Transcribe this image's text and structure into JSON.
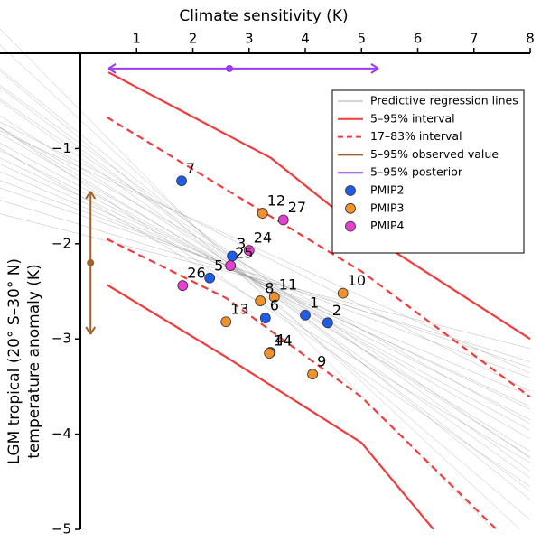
{
  "chart_data": {
    "type": "scatter",
    "xlabel": "Climate sensitivity (K)",
    "ylabel": [
      "LGM tropical (20° S–30° N)",
      "temperature anomaly (K)"
    ],
    "xlim": [
      -1.43,
      8
    ],
    "ylim": [
      -5,
      0.56
    ],
    "xticks": [
      1,
      2,
      3,
      4,
      5,
      6,
      7,
      8
    ],
    "yticks": [
      {
        "value": -1,
        "label": "−1"
      },
      {
        "value": -2,
        "label": "−2"
      },
      {
        "value": -3,
        "label": "−3"
      },
      {
        "value": -4,
        "label": "−4"
      },
      {
        "value": -5,
        "label": "−5"
      }
    ],
    "legend": "upper right",
    "regression": {
      "name": "Predictive regression lines",
      "color": "#8a8a8a",
      "lines": [
        {
          "intercept": -1.33,
          "slope": -0.34
        },
        {
          "intercept": -1.1,
          "slope": -0.42
        },
        {
          "intercept": -1.5,
          "slope": -0.28
        },
        {
          "intercept": -0.9,
          "slope": -0.5
        },
        {
          "intercept": -1.7,
          "slope": -0.2
        },
        {
          "intercept": -1.2,
          "slope": -0.38
        },
        {
          "intercept": -1.45,
          "slope": -0.3
        },
        {
          "intercept": -0.7,
          "slope": -0.55
        },
        {
          "intercept": -1.9,
          "slope": -0.15
        },
        {
          "intercept": -1.3,
          "slope": -0.36
        },
        {
          "intercept": -1.0,
          "slope": -0.45
        },
        {
          "intercept": -1.6,
          "slope": -0.25
        },
        {
          "intercept": -1.25,
          "slope": -0.33
        },
        {
          "intercept": -0.85,
          "slope": -0.48
        },
        {
          "intercept": -1.55,
          "slope": -0.27
        },
        {
          "intercept": -1.35,
          "slope": -0.4
        },
        {
          "intercept": -1.15,
          "slope": -0.3
        },
        {
          "intercept": -0.6,
          "slope": -0.6
        },
        {
          "intercept": -1.8,
          "slope": -0.18
        },
        {
          "intercept": -1.4,
          "slope": -0.32
        },
        {
          "intercept": -0.95,
          "slope": -0.43
        },
        {
          "intercept": -1.65,
          "slope": -0.22
        },
        {
          "intercept": -1.05,
          "slope": -0.4
        },
        {
          "intercept": -1.5,
          "slope": -0.35
        },
        {
          "intercept": -1.2,
          "slope": -0.27
        }
      ]
    },
    "intervals": [
      {
        "name": "5–95% interval",
        "color": "#f03c3c",
        "dashed": false,
        "curves": [
          {
            "x": [
              0.5,
              3.39,
              5,
              8
            ],
            "values": [
              -0.2,
              -1.1,
              -1.86,
              -3.0
            ]
          },
          {
            "x": [
              0.47,
              2.59,
              5,
              6.28
            ],
            "values": [
              -2.43,
              -3.19,
              -4.09,
              -5.0
            ]
          }
        ]
      },
      {
        "name": "17–83% interval",
        "color": "#f03c3c",
        "dashed": true,
        "curves": [
          {
            "x": [
              0.47,
              2.59,
              5,
              8
            ],
            "values": [
              -0.67,
              -1.43,
              -2.29,
              -3.61
            ]
          },
          {
            "x": [
              0.47,
              2.59,
              5,
              7.4
            ],
            "values": [
              -1.95,
              -2.57,
              -3.61,
              -5.0
            ]
          }
        ]
      }
    ],
    "observed": {
      "name": "5–95% observed value",
      "color": "#a0622d",
      "x": 0.18,
      "low": -2.95,
      "mid": -2.2,
      "high": -1.45
    },
    "posterior": {
      "name": "5–95% posterior",
      "color": "#9b3cf0",
      "y": -0.16,
      "low": 0.5,
      "mid": 2.65,
      "high": 5.3
    },
    "series": [
      {
        "name": "PMIP2",
        "color": "#1f5ce8",
        "labels": [
          "7",
          "3",
          "5",
          "1",
          "2",
          "6",
          "4"
        ],
        "x": [
          1.8,
          2.7,
          2.3,
          4.0,
          4.4,
          3.29,
          3.38
        ],
        "values": [
          -1.34,
          -2.13,
          -2.36,
          -2.75,
          -2.83,
          -2.78,
          -3.14
        ]
      },
      {
        "name": "PMIP3",
        "color": "#f0922b",
        "labels": [
          "12",
          "10",
          "11",
          "8",
          "13",
          "14",
          "9"
        ],
        "x": [
          3.24,
          4.67,
          3.45,
          3.2,
          2.59,
          3.36,
          4.13
        ],
        "values": [
          -1.68,
          -2.52,
          -2.56,
          -2.6,
          -2.82,
          -3.15,
          -3.37
        ]
      },
      {
        "name": "PMIP4",
        "color": "#e83fd0",
        "labels": [
          "27",
          "24",
          "25",
          "26"
        ],
        "x": [
          3.61,
          3.0,
          2.67,
          1.82
        ],
        "values": [
          -1.75,
          -2.07,
          -2.23,
          -2.44
        ]
      }
    ]
  }
}
